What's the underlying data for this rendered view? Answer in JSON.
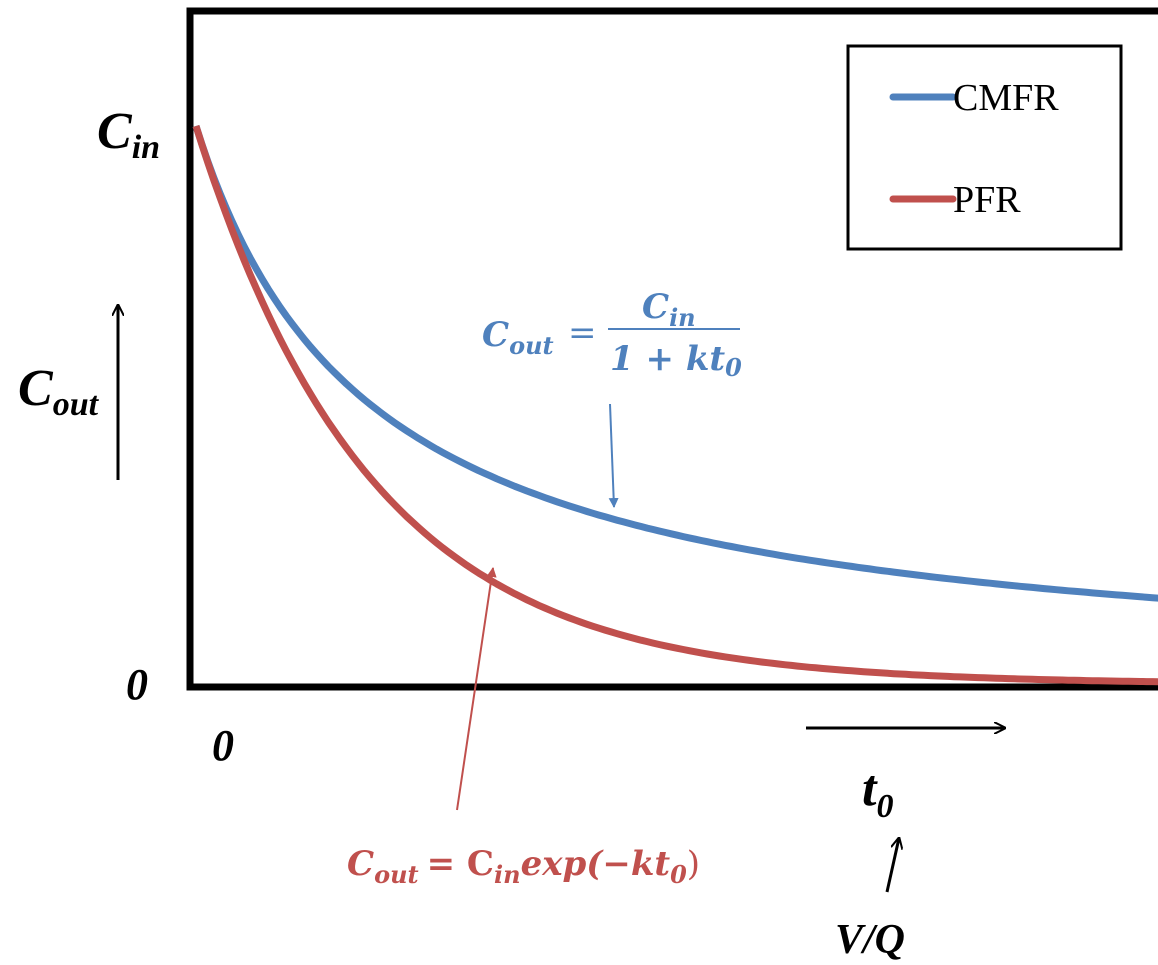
{
  "chart_data": {
    "type": "line",
    "y_axis": {
      "top_label_main": "C",
      "top_label_sub": "in",
      "zero_label": "0",
      "title_main": "C",
      "title_sub": "out"
    },
    "x_axis": {
      "zero_label": "0",
      "title_main": "t",
      "title_sub": "0",
      "note": "V/Q"
    },
    "legend": {
      "placement": "top-right",
      "entries": [
        "CMFR",
        "PFR"
      ]
    },
    "k": 1,
    "t_range": [
      0,
      5.5
    ],
    "y_range": [
      0,
      1
    ],
    "series": [
      {
        "name": "CMFR",
        "equation": "C_out = C_in / (1 + k t_0)",
        "color": "#4f81bd",
        "x": [
          0,
          0.25,
          0.5,
          0.75,
          1,
          1.5,
          2,
          2.5,
          3,
          3.5,
          4,
          4.5,
          5,
          5.5
        ],
        "y": [
          1,
          0.8,
          0.667,
          0.571,
          0.5,
          0.4,
          0.333,
          0.286,
          0.25,
          0.222,
          0.2,
          0.182,
          0.167,
          0.154
        ]
      },
      {
        "name": "PFR",
        "equation": "C_out = C_in exp(-k t_0)",
        "color": "#c0504d",
        "x": [
          0,
          0.25,
          0.5,
          0.75,
          1,
          1.5,
          2,
          2.5,
          3,
          3.5,
          4,
          4.5,
          5,
          5.5
        ],
        "y": [
          1,
          0.779,
          0.607,
          0.472,
          0.368,
          0.223,
          0.135,
          0.082,
          0.05,
          0.03,
          0.018,
          0.011,
          0.007,
          0.004
        ]
      }
    ],
    "annotations": {
      "cmfr_eq": {
        "lhs_main": "C",
        "lhs_sub": "out",
        "equals": "=",
        "num_main": "C",
        "num_sub": "in",
        "den_main": "1 + kt",
        "den_sub": "0"
      },
      "pfr_eq": {
        "lhs_main": "C",
        "lhs_sub": "out",
        "rhs_a": "= C",
        "rhs_sub1": "in",
        "rhs_b": "exp(−kt",
        "rhs_sub2": "0",
        "rhs_c": ")"
      }
    }
  }
}
